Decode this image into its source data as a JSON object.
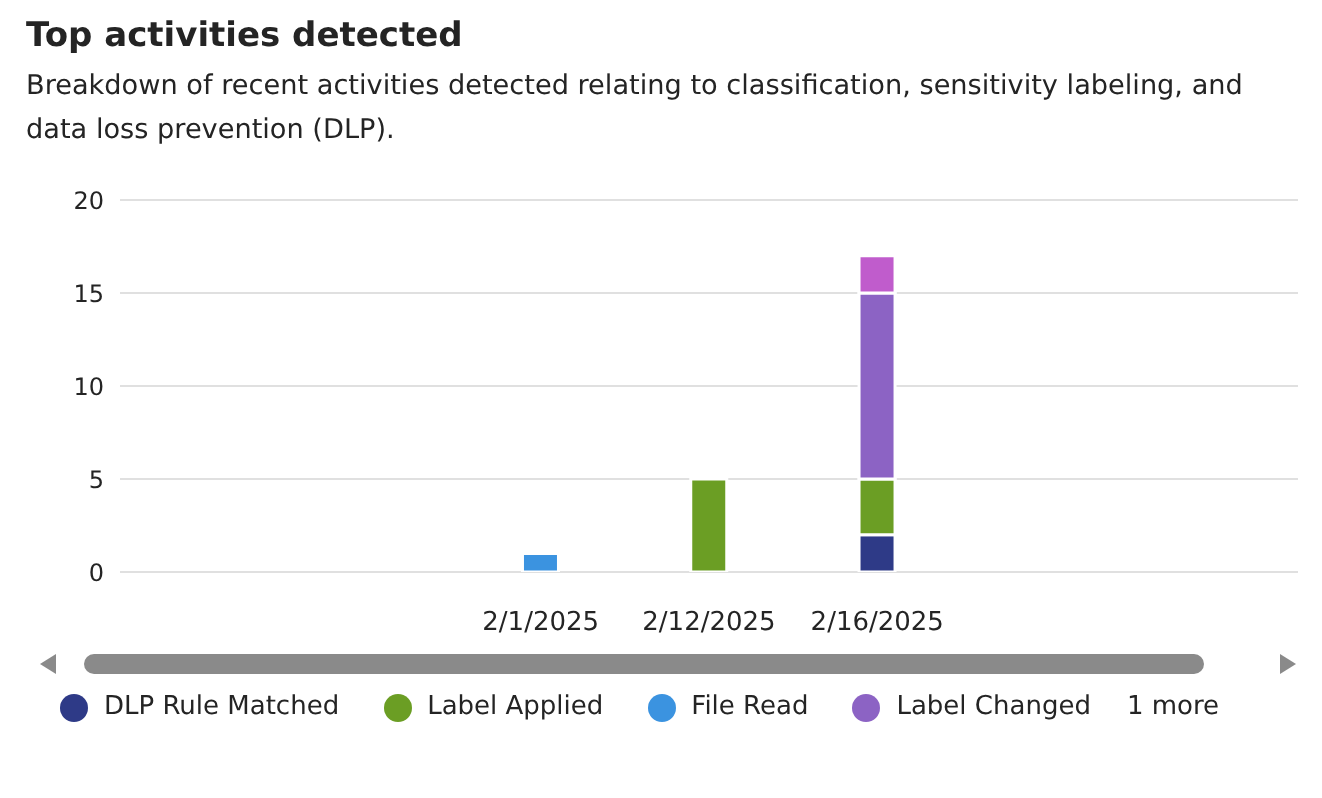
{
  "chart_data": {
    "type": "bar",
    "title": "Top activities detected",
    "subtitle": "Breakdown of recent activities detected relating to classification, sensitivity labeling, and data loss prevention (DLP).",
    "categories": [
      null,
      null,
      "2/1/2025",
      "2/12/2025",
      "2/16/2025",
      null,
      null
    ],
    "stacked": true,
    "series": [
      {
        "name": "DLP Rule Matched",
        "color": "#2e3a87",
        "values": [
          null,
          null,
          null,
          null,
          2,
          null,
          null
        ]
      },
      {
        "name": "Label Applied",
        "color": "#6b9e24",
        "values": [
          null,
          null,
          null,
          5,
          3,
          null,
          null
        ]
      },
      {
        "name": "File Read",
        "color": "#3b93e0",
        "values": [
          null,
          null,
          1,
          null,
          null,
          null,
          null
        ]
      },
      {
        "name": "Label Changed",
        "color": "#8c63c4",
        "values": [
          null,
          null,
          null,
          null,
          10,
          null,
          null
        ]
      },
      {
        "color": "#c05ccc",
        "values": [
          null,
          null,
          null,
          null,
          2,
          null,
          null
        ]
      }
    ],
    "ylim": [
      0,
      20
    ],
    "yticks": [
      0,
      5,
      10,
      15,
      20
    ],
    "grid": "y",
    "legend": "bottom",
    "annotations": [
      "1 more"
    ]
  }
}
